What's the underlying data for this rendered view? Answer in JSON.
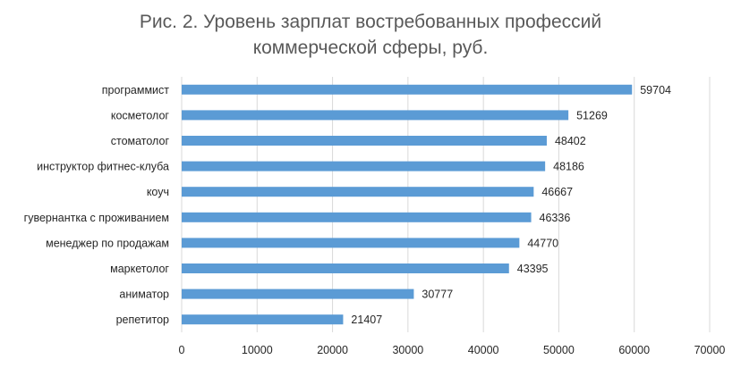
{
  "title_line1": "Рис. 2. Уровень зарплат востребованных профессий",
  "title_line2": "коммерческой сферы, руб.",
  "colors": {
    "bar": "#5B9BD5",
    "grid": "#D9D9D9",
    "text": "#262626",
    "title": "#595959"
  },
  "chart_data": {
    "type": "bar",
    "orientation": "horizontal",
    "title": "Рис. 2. Уровень зарплат востребованных профессий коммерческой сферы, руб.",
    "categories": [
      "программист",
      "косметолог",
      "стоматолог",
      "инструктор фитнес-клуба",
      "коуч",
      "гувернантка с проживанием",
      "менеджер по продажам",
      "маркетолог",
      "аниматор",
      "репетитор"
    ],
    "values": [
      59704,
      51269,
      48402,
      48186,
      46667,
      46336,
      44770,
      43395,
      30777,
      21407
    ],
    "xlim": [
      0,
      70000
    ],
    "xticks": [
      0,
      10000,
      20000,
      30000,
      40000,
      50000,
      60000,
      70000
    ],
    "grid": "vertical",
    "data_labels": true,
    "legend": "none"
  }
}
